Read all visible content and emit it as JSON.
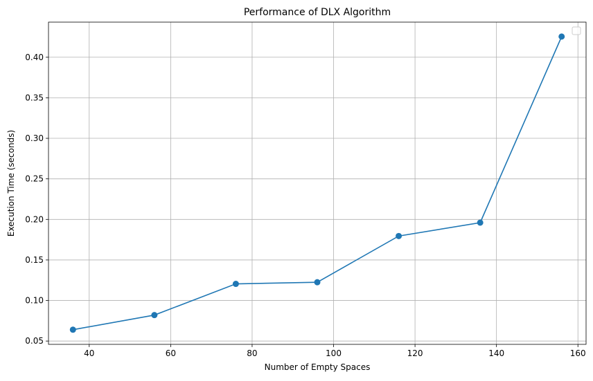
{
  "chart_data": {
    "type": "line",
    "title": "Performance of DLX Algorithm",
    "xlabel": "Number of Empty Spaces",
    "ylabel": "Execution Time (seconds)",
    "x": [
      36,
      56,
      76,
      96,
      116,
      136,
      156
    ],
    "series": [
      {
        "values": [
          0.064,
          0.082,
          0.1205,
          0.1225,
          0.1795,
          0.196,
          0.4255
        ]
      }
    ],
    "xlim": [
      30,
      162
    ],
    "ylim": [
      0.0459,
      0.4433
    ],
    "x_ticks": [
      40,
      60,
      80,
      100,
      120,
      140,
      160
    ],
    "y_ticks": [
      0.05,
      0.1,
      0.15,
      0.2,
      0.25,
      0.3,
      0.35,
      0.4
    ],
    "x_tick_labels": [
      "40",
      "60",
      "80",
      "100",
      "120",
      "140",
      "160"
    ],
    "y_tick_labels": [
      "0.05",
      "0.10",
      "0.15",
      "0.20",
      "0.25",
      "0.30",
      "0.35",
      "0.40"
    ],
    "grid": true,
    "legend": {
      "placement": "upper-right",
      "entries": []
    },
    "colors": {
      "line": "#1f77b4",
      "grid": "#b0b0b0",
      "axes": "#000000"
    },
    "marker": "circle"
  }
}
